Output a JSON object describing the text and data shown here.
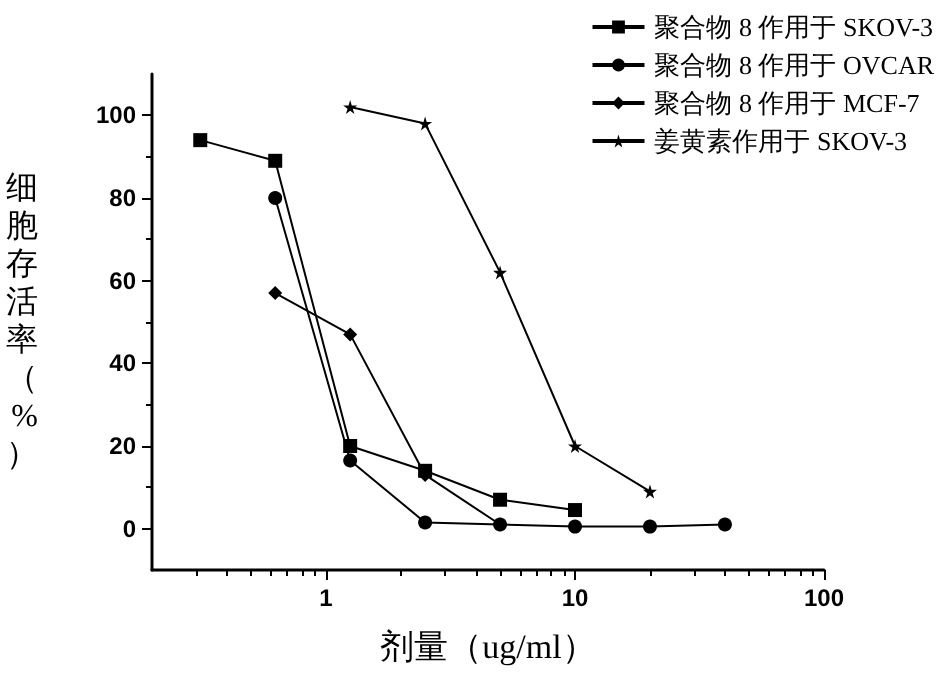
{
  "chart_data": {
    "type": "line",
    "xlabel": "剂量（ug/ml）",
    "ylabel": "细胞存活率（%）",
    "x": [
      0.3125,
      0.625,
      1.25,
      2.5,
      5,
      10,
      20,
      40
    ],
    "series": [
      {
        "name": "聚合物 8 作用于 SKOV-3",
        "color": "#000000",
        "marker": "square",
        "values": [
          94,
          89,
          20,
          14,
          7,
          4.5,
          null,
          null
        ]
      },
      {
        "name": "聚合物 8 作用于 OVCAR",
        "color": "#000000",
        "marker": "circle",
        "values": [
          null,
          80,
          16.5,
          1.5,
          1,
          0.5,
          0.5,
          1
        ]
      },
      {
        "name": "聚合物 8 作用于 MCF-7",
        "color": "#000000",
        "marker": "diamond",
        "values": [
          null,
          57,
          47,
          13,
          1,
          null,
          null,
          null
        ]
      },
      {
        "name": "姜黄素作用于 SKOV-3",
        "color": "#000000",
        "marker": "star",
        "values": [
          null,
          null,
          102,
          98,
          62,
          20,
          9,
          null
        ]
      }
    ],
    "log": "x",
    "xlim": [
      0.2,
      100
    ],
    "xticks": [
      1,
      10,
      100
    ],
    "ylim": [
      -10,
      110
    ],
    "yticks": [
      0,
      20,
      40,
      60,
      80,
      100
    ],
    "grid": false,
    "legend": "top right",
    "line_style": "solid"
  }
}
